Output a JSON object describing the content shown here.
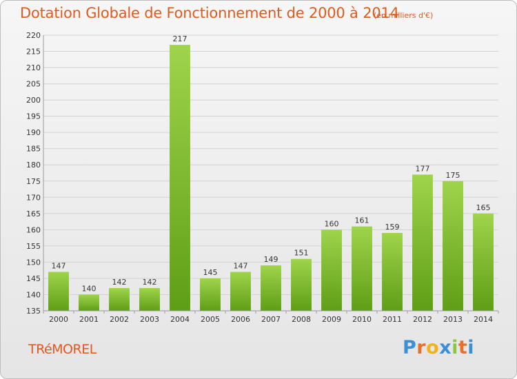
{
  "chart_data": {
    "type": "bar",
    "title": "Dotation Globale de Fonctionnement de 2000 à 2014",
    "unit_note": "(en milliers d'€)",
    "categories": [
      "2000",
      "2001",
      "2002",
      "2003",
      "2004",
      "2005",
      "2006",
      "2007",
      "2008",
      "2009",
      "2010",
      "2011",
      "2012",
      "2013",
      "2014"
    ],
    "values": [
      147,
      140,
      142,
      142,
      217,
      145,
      147,
      149,
      151,
      160,
      161,
      159,
      177,
      175,
      165
    ],
    "ylim": [
      135,
      220
    ],
    "yticks": [
      135,
      140,
      145,
      150,
      155,
      160,
      165,
      170,
      175,
      180,
      185,
      190,
      195,
      200,
      205,
      210,
      215,
      220
    ],
    "grid": true,
    "bar_color": "#7dbf2e"
  },
  "commune": "TRéMOREL",
  "logo": {
    "letters": [
      "P",
      "r",
      "o",
      "x",
      "i",
      "t",
      "i"
    ],
    "colors": [
      "#3a8fd6",
      "#e8702a",
      "#f2b21b",
      "#3a8fd6",
      "#8cc63f",
      "#e8702a",
      "#3a8fd6"
    ]
  }
}
